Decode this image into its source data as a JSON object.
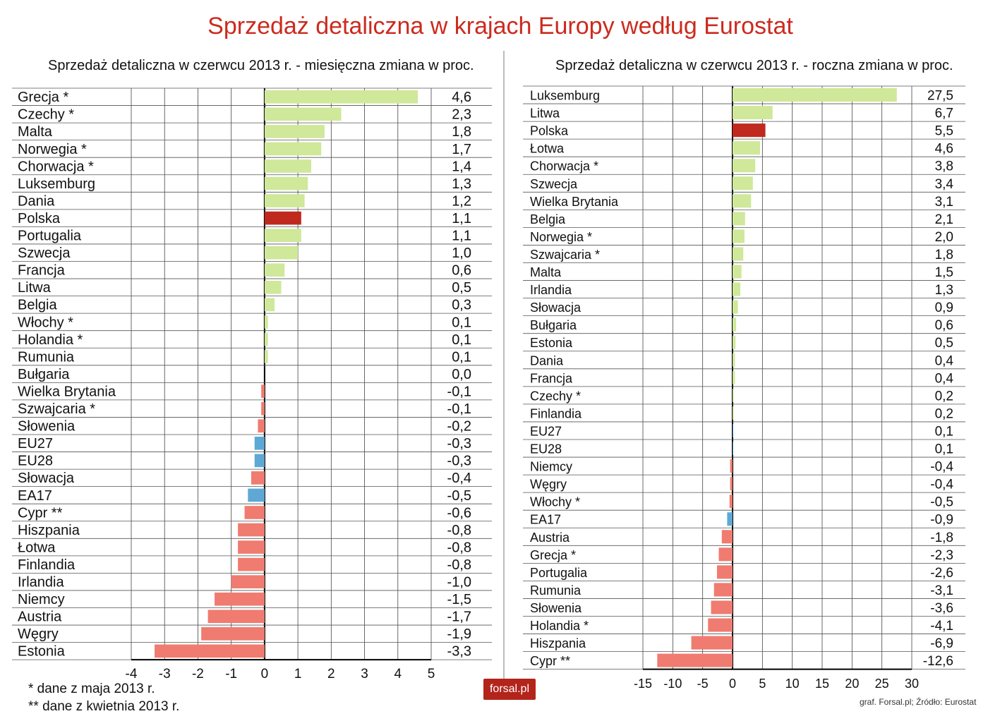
{
  "main_title": "Sprzedaż detaliczna w krajach Europy według Eurostat",
  "notes": [
    "* dane z maja 2013 r.",
    "** dane z kwietnia 2013 r."
  ],
  "logo_text": "forsal.pl",
  "source": "graf. Forsal.pl; Źródło: Eurostat",
  "colors": {
    "positive": "#cfe89a",
    "negative": "#f07b70",
    "poland": "#c0291e",
    "aggregate": "#5ea8d6",
    "grid": "#333333",
    "title": "#cc2a1e"
  },
  "chart_data": [
    {
      "type": "bar",
      "orientation": "horizontal",
      "title": "Sprzedaż detaliczna w czerwcu 2013 r. - miesięczna zmiana w proc.",
      "xlim": [
        -4,
        5
      ],
      "xticks": [
        -4,
        -3,
        -2,
        -1,
        0,
        1,
        2,
        3,
        4,
        5
      ],
      "grid": true,
      "categories": [
        "Grecja *",
        "Czechy *",
        "Malta",
        "Norwegia *",
        "Chorwacja *",
        "Luksemburg",
        "Dania",
        "Polska",
        "Portugalia",
        "Szwecja",
        "Francja",
        "Litwa",
        "Belgia",
        "Włochy *",
        "Holandia *",
        "Rumunia",
        "Bułgaria",
        "Wielka Brytania",
        "Szwajcaria *",
        "Słowenia",
        "EU27",
        "EU28",
        "Słowacja",
        "EA17",
        "Cypr **",
        "Hiszpania",
        "Łotwa",
        "Finlandia",
        "Irlandia",
        "Niemcy",
        "Austria",
        "Węgry",
        "Estonia"
      ],
      "values": [
        4.6,
        2.3,
        1.8,
        1.7,
        1.4,
        1.3,
        1.2,
        1.1,
        1.1,
        1.0,
        0.6,
        0.5,
        0.3,
        0.1,
        0.1,
        0.1,
        0.0,
        -0.1,
        -0.1,
        -0.2,
        -0.3,
        -0.3,
        -0.4,
        -0.5,
        -0.6,
        -0.8,
        -0.8,
        -0.8,
        -1.0,
        -1.5,
        -1.7,
        -1.9,
        -3.3
      ],
      "value_labels": [
        "4,6",
        "2,3",
        "1,8",
        "1,7",
        "1,4",
        "1,3",
        "1,2",
        "1,1",
        "1,1",
        "1,0",
        "0,6",
        "0,5",
        "0,3",
        "0,1",
        "0,1",
        "0,1",
        "0,0",
        "-0,1",
        "-0,1",
        "-0,2",
        "-0,3",
        "-0,3",
        "-0,4",
        "-0,5",
        "-0,6",
        "-0,8",
        "-0,8",
        "-0,8",
        "-1,0",
        "-1,5",
        "-1,7",
        "-1,9",
        "-3,3"
      ],
      "highlight": {
        "Polska": "poland",
        "EU27": "aggregate",
        "EU28": "aggregate",
        "EA17": "aggregate"
      }
    },
    {
      "type": "bar",
      "orientation": "horizontal",
      "title": "Sprzedaż detaliczna w czerwcu 2013 r. - roczna zmiana w proc.",
      "xlim": [
        -15,
        30
      ],
      "xticks": [
        -15,
        -10,
        -5,
        0,
        5,
        10,
        15,
        20,
        25,
        30
      ],
      "grid": true,
      "categories": [
        "Luksemburg",
        "Litwa",
        "Polska",
        "Łotwa",
        "Chorwacja *",
        "Szwecja",
        "Wielka Brytania",
        "Belgia",
        "Norwegia *",
        "Szwajcaria *",
        "Malta",
        "Irlandia",
        "Słowacja",
        "Bułgaria",
        "Estonia",
        "Dania",
        "Francja",
        "Czechy *",
        "Finlandia",
        "EU27",
        "EU28",
        "Niemcy",
        "Węgry",
        "Włochy *",
        "EA17",
        "Austria",
        "Grecja *",
        "Portugalia",
        "Rumunia",
        "Słowenia",
        "Holandia *",
        "Hiszpania",
        "Cypr **"
      ],
      "values": [
        27.5,
        6.7,
        5.5,
        4.6,
        3.8,
        3.4,
        3.1,
        2.1,
        2.0,
        1.8,
        1.5,
        1.3,
        0.9,
        0.6,
        0.5,
        0.4,
        0.4,
        0.2,
        0.2,
        0.1,
        0.1,
        -0.4,
        -0.4,
        -0.5,
        -0.9,
        -1.8,
        -2.3,
        -2.6,
        -3.1,
        -3.6,
        -4.1,
        -6.9,
        -12.6
      ],
      "value_labels": [
        "27,5",
        "6,7",
        "5,5",
        "4,6",
        "3,8",
        "3,4",
        "3,1",
        "2,1",
        "2,0",
        "1,8",
        "1,5",
        "1,3",
        "0,9",
        "0,6",
        "0,5",
        "0,4",
        "0,4",
        "0,2",
        "0,2",
        "0,1",
        "0,1",
        "-0,4",
        "-0,4",
        "-0,5",
        "-0,9",
        "-1,8",
        "-2,3",
        "-2,6",
        "-3,1",
        "-3,6",
        "-4,1",
        "-6,9",
        "-12,6"
      ],
      "highlight": {
        "Polska": "poland",
        "EU27": "aggregate",
        "EU28": "aggregate",
        "EA17": "aggregate"
      }
    }
  ]
}
